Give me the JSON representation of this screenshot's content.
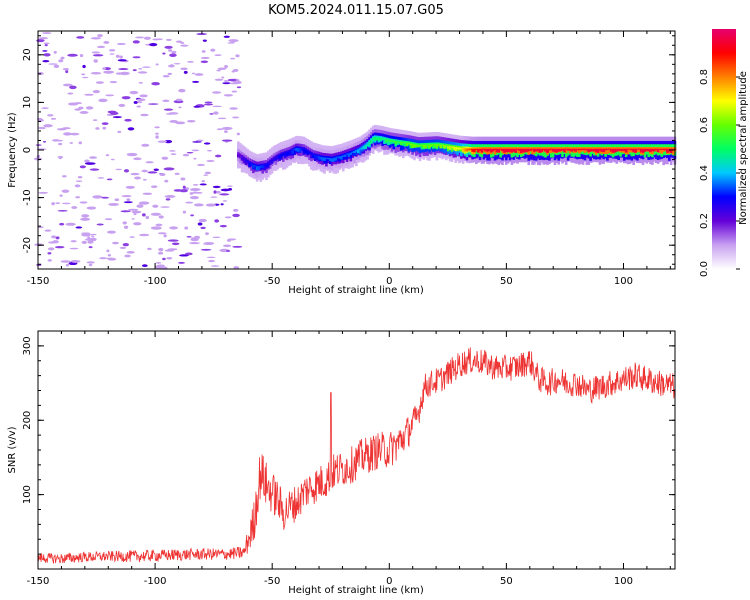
{
  "title": "KOM5.2024.011.15.07.G05",
  "chart_data": [
    {
      "type": "heatmap",
      "xlabel": "Height of straight line (km)",
      "ylabel": "Frequency (Hz)",
      "xlim": [
        -150,
        122
      ],
      "ylim": [
        -25,
        25
      ],
      "x_ticks": [
        -150,
        -100,
        -50,
        0,
        50,
        100
      ],
      "y_ticks": [
        -20,
        -10,
        0,
        10,
        20
      ],
      "colorbar": {
        "label": "Normalized spectral amplitude",
        "range": [
          0,
          1
        ],
        "ticks": [
          0.0,
          0.2,
          0.4,
          0.6,
          0.8
        ],
        "colors": [
          "#ffffff",
          "#c8a0f0",
          "#6400d8",
          "#0000ff",
          "#00c8ff",
          "#00ff64",
          "#64ff00",
          "#ffff00",
          "#ff8000",
          "#ff0000",
          "#e6006e"
        ]
      },
      "noise_region": {
        "x_range": [
          -150,
          -64
        ],
        "amplitude": 0.15
      },
      "ridge": {
        "x": [
          -65,
          -60,
          -57,
          -53,
          -50,
          -47,
          -43,
          -40,
          -37,
          -33,
          -29,
          -25,
          -21,
          -17,
          -13,
          -10,
          -7,
          -4,
          0,
          4,
          8,
          12,
          16,
          20,
          25,
          30,
          35,
          40,
          50,
          60,
          70,
          80,
          90,
          100,
          110,
          122
        ],
        "y": [
          -1,
          -3,
          -3.7,
          -3.3,
          -2,
          -1.2,
          -0.5,
          0.2,
          0,
          -1.2,
          -1.8,
          -2,
          -1.5,
          -0.8,
          0,
          1,
          2.5,
          2.3,
          1.8,
          1.5,
          1.2,
          0.8,
          0.9,
          1.0,
          0.6,
          0.2,
          0,
          0,
          0,
          0,
          0,
          0,
          0,
          0,
          0,
          0
        ],
        "amplitude": [
          0.2,
          0.3,
          0.35,
          0.3,
          0.25,
          0.3,
          0.3,
          0.35,
          0.3,
          0.3,
          0.35,
          0.35,
          0.35,
          0.35,
          0.4,
          0.45,
          0.5,
          0.5,
          0.55,
          0.55,
          0.6,
          0.6,
          0.6,
          0.6,
          0.65,
          0.7,
          0.9,
          0.95,
          0.95,
          0.95,
          0.95,
          0.95,
          0.95,
          0.95,
          0.95,
          0.95
        ]
      }
    },
    {
      "type": "line",
      "xlabel": "Height of straight line (km)",
      "ylabel": "SNR (v/v)",
      "xlim": [
        -150,
        122
      ],
      "ylim": [
        0,
        320
      ],
      "x_ticks": [
        -150,
        -100,
        -50,
        0,
        50,
        100
      ],
      "y_ticks": [
        100,
        200,
        300
      ],
      "color": "#ee3333",
      "series": [
        {
          "x": [
            -150,
            -140,
            -130,
            -120,
            -110,
            -100,
            -90,
            -80,
            -70,
            -62,
            -58,
            -55,
            -52,
            -48,
            -45,
            -42,
            -39,
            -36,
            -33,
            -30,
            -27,
            -24,
            -20,
            -16,
            -12,
            -8,
            -4,
            0,
            4,
            8,
            12,
            15,
            18,
            22,
            26,
            30,
            34,
            38,
            42,
            46,
            50,
            55,
            60,
            64,
            68,
            72,
            76,
            80,
            85,
            90,
            95,
            100,
            105,
            110,
            115,
            122
          ],
          "y": [
            15,
            14,
            16,
            17,
            17,
            18,
            19,
            20,
            20,
            22,
            60,
            130,
            110,
            95,
            75,
            85,
            90,
            105,
            110,
            115,
            120,
            130,
            135,
            140,
            150,
            155,
            160,
            160,
            170,
            185,
            205,
            245,
            250,
            255,
            265,
            275,
            280,
            280,
            275,
            270,
            270,
            272,
            280,
            255,
            250,
            255,
            250,
            250,
            240,
            245,
            250,
            255,
            260,
            255,
            250,
            245
          ],
          "noise": [
            7,
            7,
            7,
            7,
            8,
            8,
            8,
            8,
            8,
            9,
            30,
            35,
            30,
            28,
            25,
            25,
            25,
            25,
            25,
            25,
            25,
            25,
            25,
            25,
            25,
            25,
            25,
            25,
            25,
            22,
            20,
            18,
            18,
            18,
            18,
            18,
            18,
            18,
            18,
            18,
            18,
            18,
            18,
            18,
            18,
            18,
            18,
            18,
            18,
            18,
            18,
            18,
            18,
            18,
            18,
            18
          ]
        }
      ],
      "spikes": [
        {
          "x": -25,
          "y": 237
        }
      ]
    }
  ]
}
